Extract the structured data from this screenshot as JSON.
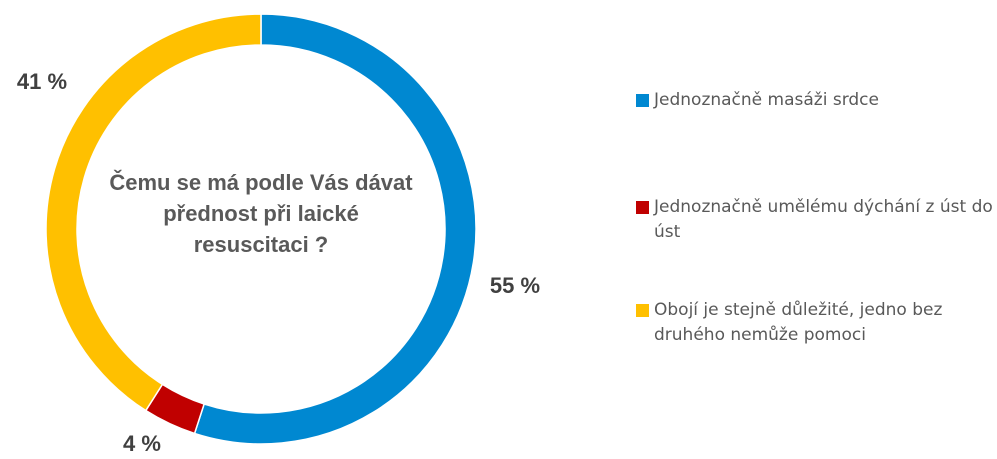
{
  "chart_data": {
    "type": "donut",
    "title": "Čemu se má podle Vás dávat přednost při laické resuscitaci ?",
    "categories": [
      "Jednoznačně masáži srdce",
      "Jednoznačně umělému dýchání z úst do úst",
      "Obojí je stejně důležité, jedno bez druhého nemůže pomoci"
    ],
    "values": [
      55,
      4,
      41
    ],
    "value_labels": [
      "55 %",
      "4 %",
      "41 %"
    ],
    "colors": [
      "#0088d1",
      "#c00000",
      "#ffc000"
    ],
    "legend": "right"
  }
}
